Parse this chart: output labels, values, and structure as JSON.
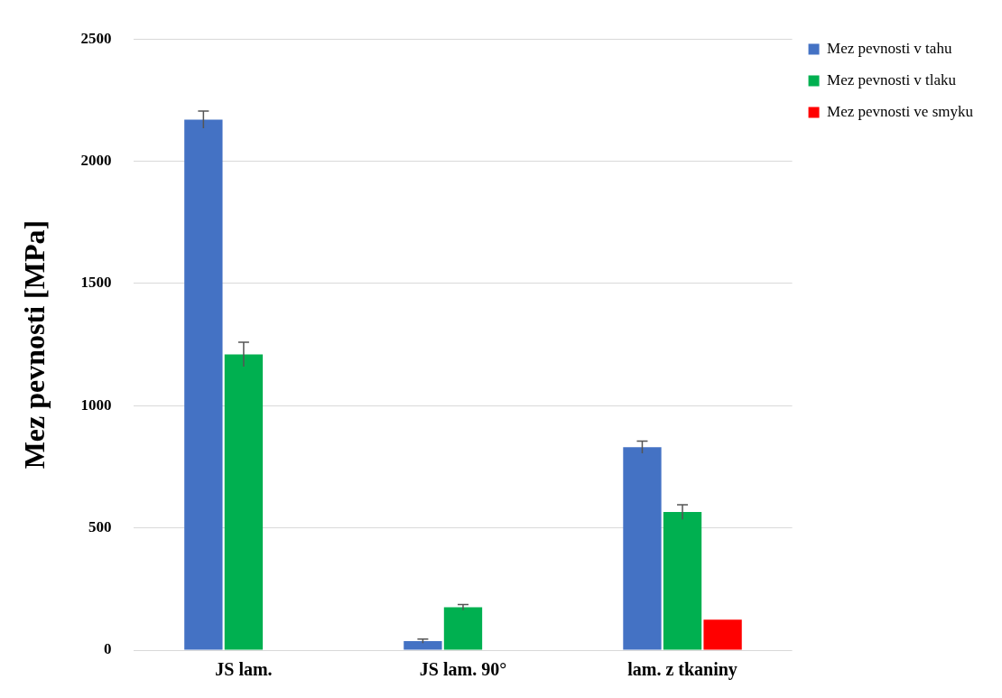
{
  "chart_data": {
    "type": "bar",
    "ylabel": "Mez pevnosti [MPa]",
    "categories": [
      "JS lam.",
      "JS lam. 90°",
      "lam. z tkaniny"
    ],
    "series": [
      {
        "name": "Mez pevnosti v tahu",
        "color": "#4472c4",
        "values": [
          2170,
          37,
          830
        ],
        "errors": [
          35,
          8,
          25
        ]
      },
      {
        "name": "Mez pevnosti v tlaku",
        "color": "#00b050",
        "values": [
          1210,
          175,
          565
        ],
        "errors": [
          50,
          12,
          30
        ]
      },
      {
        "name": "Mez pevnosti ve smyku",
        "color": "#ff0000",
        "values": [
          null,
          null,
          125
        ],
        "errors": [
          null,
          null,
          null
        ]
      }
    ],
    "ylim": [
      0,
      2500
    ],
    "yticks": [
      0,
      500,
      1000,
      1500,
      2000,
      2500
    ],
    "grid": "y",
    "legend": "top right"
  }
}
